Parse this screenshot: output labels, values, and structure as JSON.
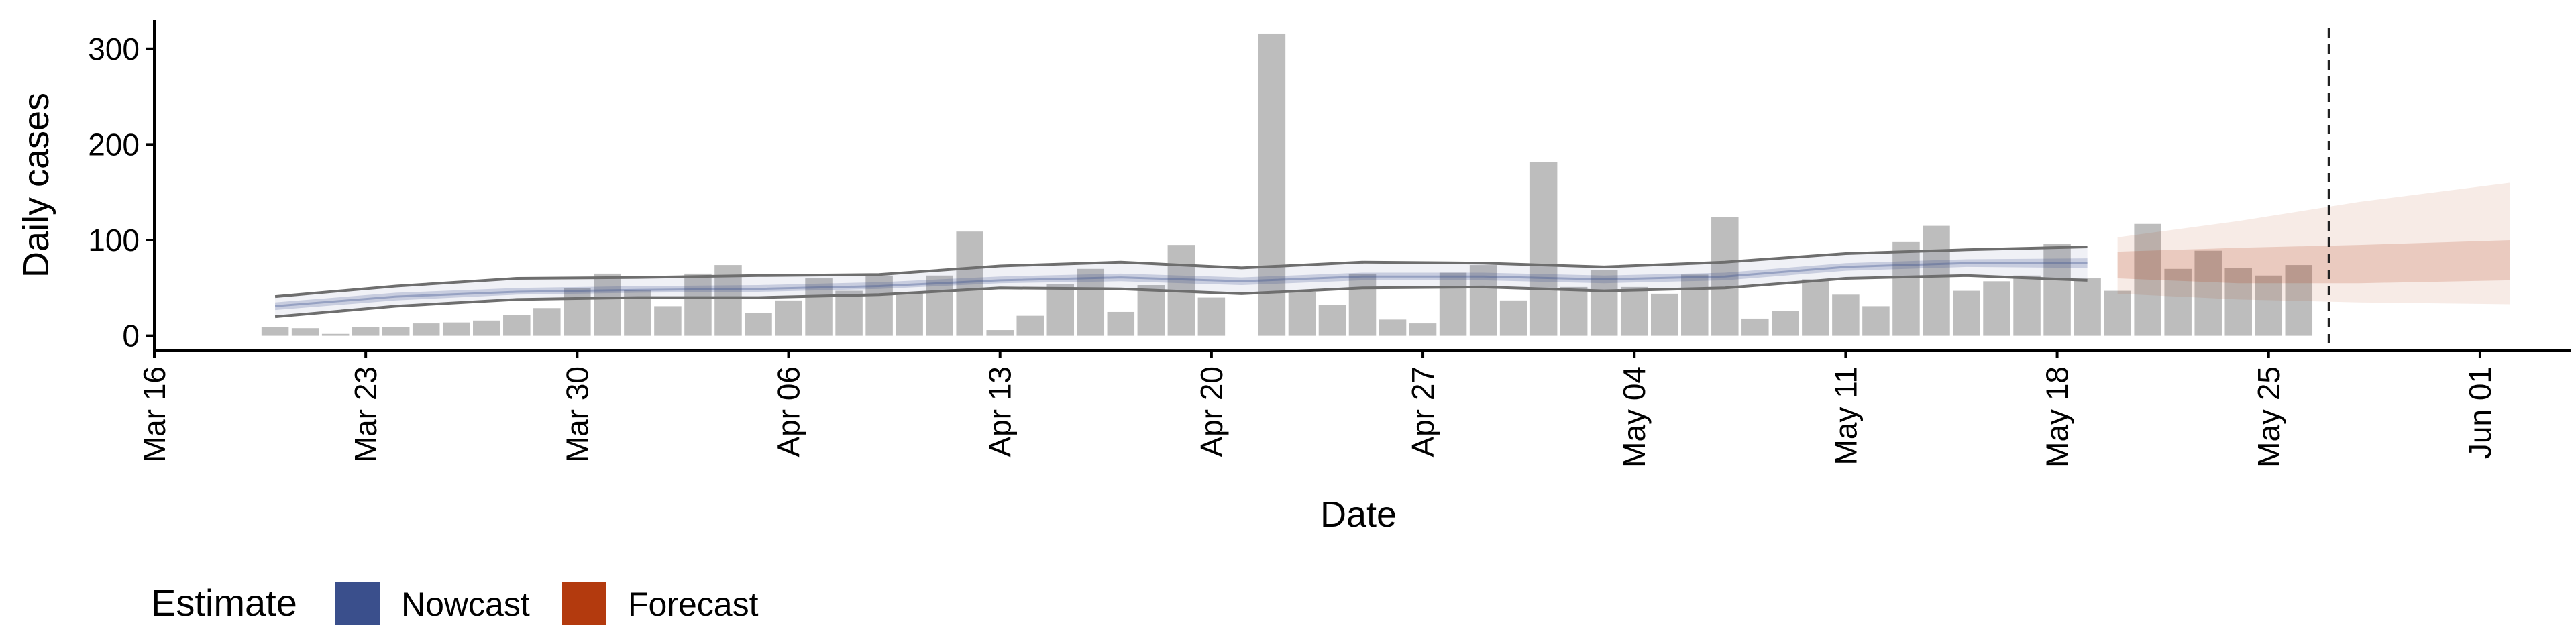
{
  "chart_data": {
    "type": "bar",
    "xlabel": "Date",
    "ylabel": "Daily cases",
    "xlim": [
      "2020-03-16",
      "2020-06-04"
    ],
    "ylim": [
      -15,
      330
    ],
    "x_ticks": [
      "2020-03-16",
      "2020-03-23",
      "2020-03-30",
      "2020-04-06",
      "2020-04-13",
      "2020-04-20",
      "2020-04-27",
      "2020-05-04",
      "2020-05-11",
      "2020-05-18",
      "2020-05-25",
      "2020-06-01"
    ],
    "x_tick_labels": [
      "Mar 16",
      "Mar 23",
      "Mar 30",
      "Apr 06",
      "Apr 13",
      "Apr 20",
      "Apr 27",
      "May 04",
      "May 11",
      "May 18",
      "May 25",
      "Jun 01"
    ],
    "y_ticks": [
      0,
      100,
      200,
      300
    ],
    "y_tick_labels": [
      "0",
      "100",
      "200",
      "300"
    ],
    "grid": false,
    "legend": {
      "title": "Estimate",
      "position": "bottom-left",
      "items": [
        {
          "name": "Nowcast",
          "color": "#3a4f8c"
        },
        {
          "name": "Forecast",
          "color": "#b33a0e"
        }
      ]
    },
    "vline_date": "2020-05-27",
    "colors": {
      "bars": "#bdbdbd",
      "nowcast": "#3a4f8c",
      "forecast": "#b33a0e",
      "interval_line": "#6e6e6e",
      "vline": "#222222"
    },
    "bars": {
      "dates": [
        "2020-03-20",
        "2020-03-21",
        "2020-03-22",
        "2020-03-23",
        "2020-03-24",
        "2020-03-25",
        "2020-03-26",
        "2020-03-27",
        "2020-03-28",
        "2020-03-29",
        "2020-03-30",
        "2020-03-31",
        "2020-04-01",
        "2020-04-02",
        "2020-04-03",
        "2020-04-04",
        "2020-04-05",
        "2020-04-06",
        "2020-04-07",
        "2020-04-08",
        "2020-04-09",
        "2020-04-10",
        "2020-04-11",
        "2020-04-12",
        "2020-04-13",
        "2020-04-14",
        "2020-04-15",
        "2020-04-16",
        "2020-04-17",
        "2020-04-18",
        "2020-04-19",
        "2020-04-20",
        "2020-04-21",
        "2020-04-22",
        "2020-04-23",
        "2020-04-24",
        "2020-04-25",
        "2020-04-26",
        "2020-04-27",
        "2020-04-28",
        "2020-04-29",
        "2020-04-30",
        "2020-05-01",
        "2020-05-02",
        "2020-05-03",
        "2020-05-04",
        "2020-05-05",
        "2020-05-06",
        "2020-05-07",
        "2020-05-08",
        "2020-05-09",
        "2020-05-10",
        "2020-05-11",
        "2020-05-12",
        "2020-05-13",
        "2020-05-14",
        "2020-05-15",
        "2020-05-16",
        "2020-05-17",
        "2020-05-18",
        "2020-05-19",
        "2020-05-20",
        "2020-05-21",
        "2020-05-22",
        "2020-05-23",
        "2020-05-24",
        "2020-05-25",
        "2020-05-26",
        "2020-05-27"
      ],
      "values": [
        9,
        8,
        2,
        9,
        9,
        13,
        14,
        16,
        22,
        29,
        50,
        65,
        48,
        31,
        65,
        74,
        24,
        37,
        60,
        47,
        63,
        45,
        63,
        109,
        6,
        21,
        54,
        70,
        25,
        53,
        95,
        40,
        0,
        316,
        46,
        32,
        65,
        17,
        13,
        66,
        74,
        37,
        182,
        51,
        69,
        51,
        44,
        64,
        124,
        18,
        26,
        59,
        43,
        31,
        98,
        115,
        47,
        57,
        63,
        96,
        60,
        47,
        117,
        70,
        89,
        71,
        63,
        74,
        0
      ]
    },
    "nowcast": {
      "dates": [
        "2020-03-20",
        "2020-03-24",
        "2020-03-28",
        "2020-04-01",
        "2020-04-05",
        "2020-04-09",
        "2020-04-13",
        "2020-04-17",
        "2020-04-21",
        "2020-04-25",
        "2020-04-29",
        "2020-05-03",
        "2020-05-07",
        "2020-05-11",
        "2020-05-15",
        "2020-05-19"
      ],
      "median": [
        31,
        41,
        46,
        48,
        49,
        52,
        58,
        61,
        57,
        62,
        62,
        59,
        62,
        72,
        76,
        76
      ],
      "inner_lower": [
        27,
        37,
        43,
        45,
        46,
        49,
        55,
        57,
        53,
        58,
        58,
        55,
        58,
        68,
        72,
        71
      ],
      "inner_upper": [
        35,
        45,
        50,
        52,
        53,
        56,
        62,
        65,
        61,
        66,
        66,
        63,
        66,
        76,
        80,
        81
      ],
      "outer_lower": [
        20,
        31,
        38,
        40,
        40,
        43,
        50,
        49,
        44,
        50,
        51,
        47,
        50,
        60,
        63,
        58
      ],
      "outer_upper": [
        41,
        52,
        60,
        61,
        63,
        64,
        73,
        77,
        71,
        77,
        76,
        72,
        77,
        86,
        90,
        93
      ]
    },
    "forecast": {
      "dates": [
        "2020-05-20",
        "2020-05-24",
        "2020-05-28",
        "2020-06-02"
      ],
      "median": [
        75,
        75,
        75,
        80
      ],
      "inner_lower": [
        60,
        55,
        55,
        58
      ],
      "inner_upper": [
        88,
        92,
        95,
        100
      ],
      "outer_lower": [
        44,
        38,
        35,
        33
      ],
      "outer_upper": [
        103,
        120,
        140,
        160
      ]
    }
  }
}
